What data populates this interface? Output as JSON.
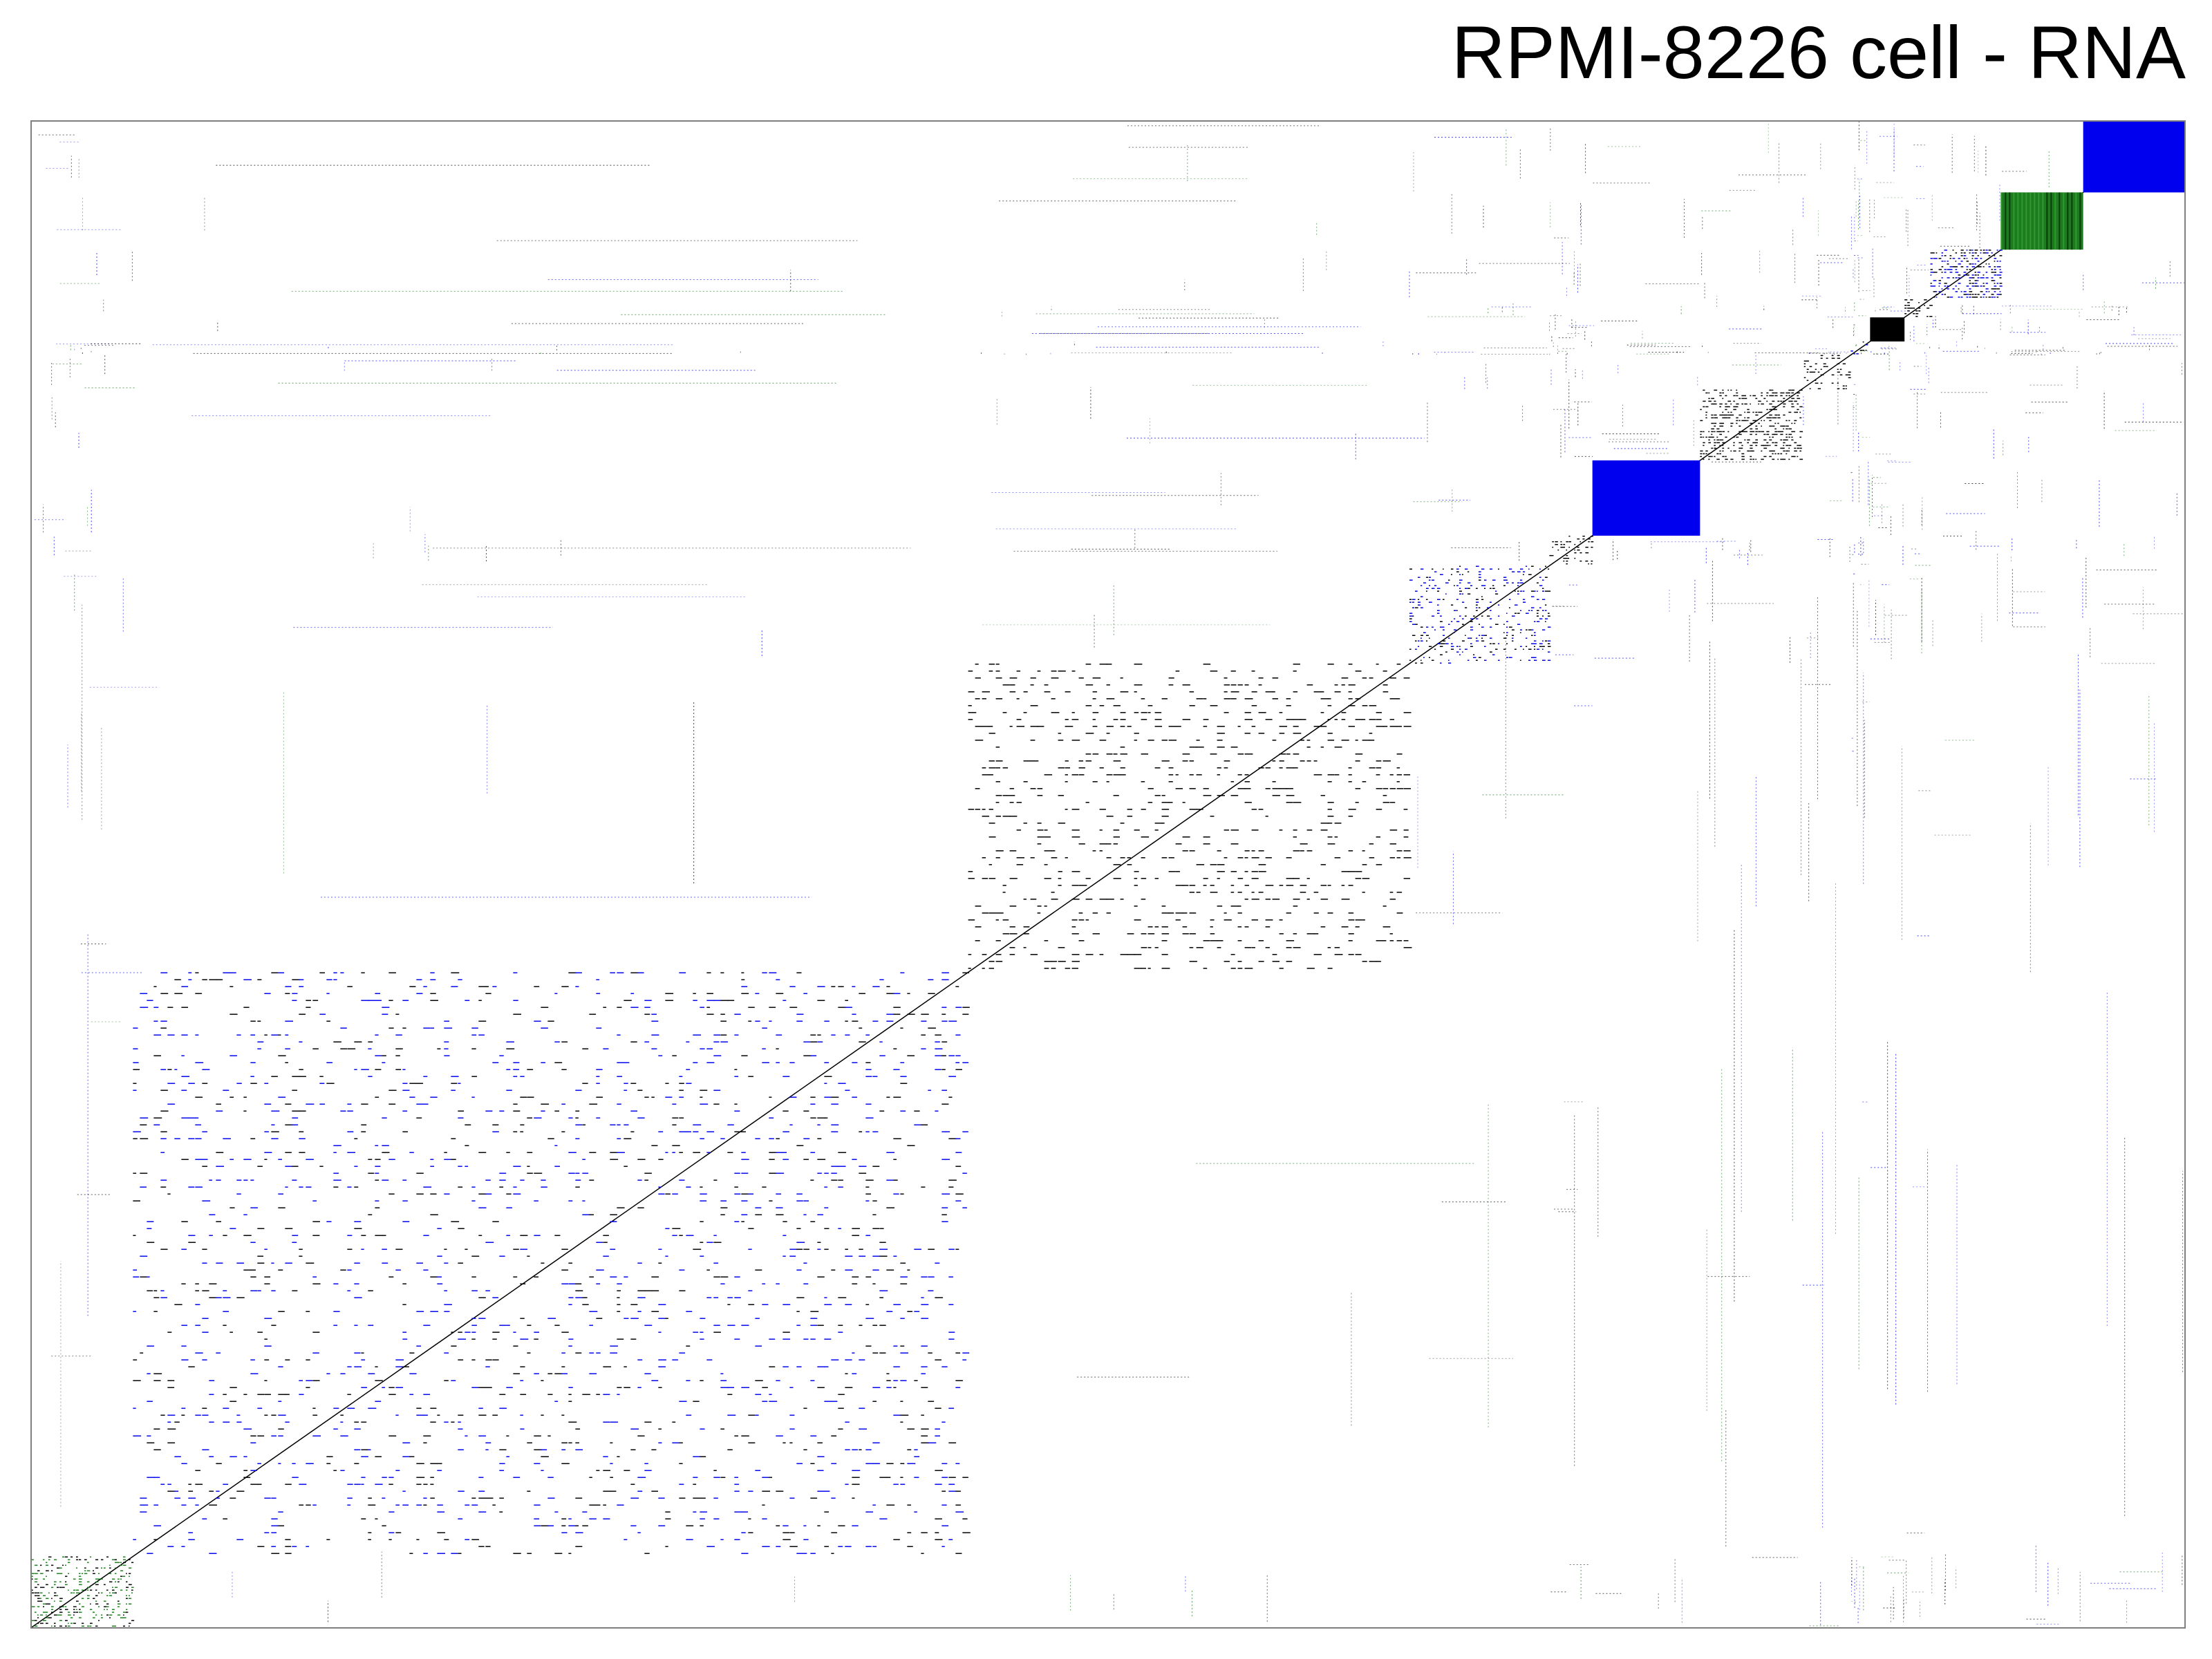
{
  "chart_data": {
    "type": "heatmap",
    "title": "RPMI-8226 cell - RNA",
    "xlabel": "",
    "ylabel": "",
    "grid": false,
    "legend": "none",
    "axis_range": [
      0,
      1
    ],
    "colors": {
      "black": "#000000",
      "blue": "#0000ee",
      "green": "#1e7a1e",
      "border": "#7f7f7f",
      "background": "#ffffff"
    },
    "clusters": [
      {
        "name": "c1",
        "range": [
          0.0,
          0.047
        ],
        "color": "green",
        "density": 0.55
      },
      {
        "name": "c2",
        "range": [
          0.047,
          0.435
        ],
        "color": "blue",
        "density": 0.32
      },
      {
        "name": "c3",
        "range": [
          0.435,
          0.64
        ],
        "color": "black",
        "density": 0.45
      },
      {
        "name": "c4",
        "range": [
          0.64,
          0.705
        ],
        "color": "blue",
        "density": 0.35
      },
      {
        "name": "c5",
        "range": [
          0.705,
          0.725
        ],
        "color": "black",
        "density": 0.4
      },
      {
        "name": "c6",
        "range": [
          0.725,
          0.775
        ],
        "color": "blue",
        "density": 1.0
      },
      {
        "name": "c7",
        "range": [
          0.775,
          0.822
        ],
        "color": "black",
        "density": 0.7
      },
      {
        "name": "c8",
        "range": [
          0.822,
          0.845
        ],
        "color": "black",
        "density": 0.3
      },
      {
        "name": "c9",
        "range": [
          0.845,
          0.848
        ],
        "color": "blue",
        "density": 0.5
      },
      {
        "name": "c10",
        "range": [
          0.848,
          0.854
        ],
        "color": "blue",
        "density": 0.6
      },
      {
        "name": "c11",
        "range": [
          0.854,
          0.87
        ],
        "color": "black",
        "density": 1.0
      },
      {
        "name": "c12",
        "range": [
          0.87,
          0.882
        ],
        "color": "black",
        "density": 0.7
      },
      {
        "name": "c13",
        "range": [
          0.882,
          0.915
        ],
        "color": "blue",
        "density": 0.8
      },
      {
        "name": "c14",
        "range": [
          0.915,
          0.953
        ],
        "color": "green",
        "density": 0.95
      },
      {
        "name": "c15",
        "range": [
          0.953,
          1.0
        ],
        "color": "blue",
        "density": 0.9
      }
    ]
  }
}
